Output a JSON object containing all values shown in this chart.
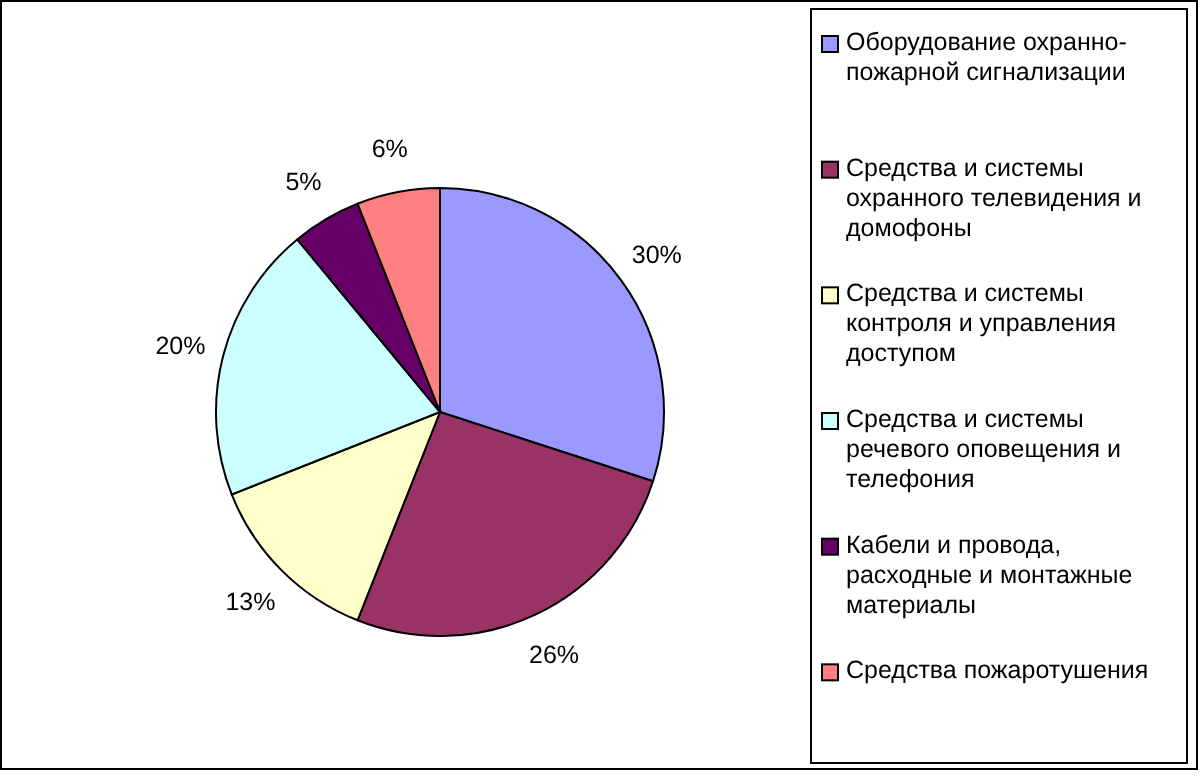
{
  "chart_data": {
    "type": "pie",
    "categories": [
      "Оборудование охранно-пожарной сигнализации",
      "Средства и системы охранного телевидения и домофоны",
      "Средства и системы контроля и управления доступом",
      "Средства и системы речевого оповещения и телефония",
      "Кабели и провода, расходные и монтажные материалы",
      "Средства пожаротушения"
    ],
    "values": [
      30,
      26,
      13,
      20,
      5,
      6
    ],
    "colors": [
      "#9999ff",
      "#993366",
      "#ffffcc",
      "#ccffff",
      "#660066",
      "#ff8080"
    ],
    "value_labels": [
      "30%",
      "26%",
      "13%",
      "20%",
      "5%",
      "6%"
    ],
    "legend": "right"
  }
}
